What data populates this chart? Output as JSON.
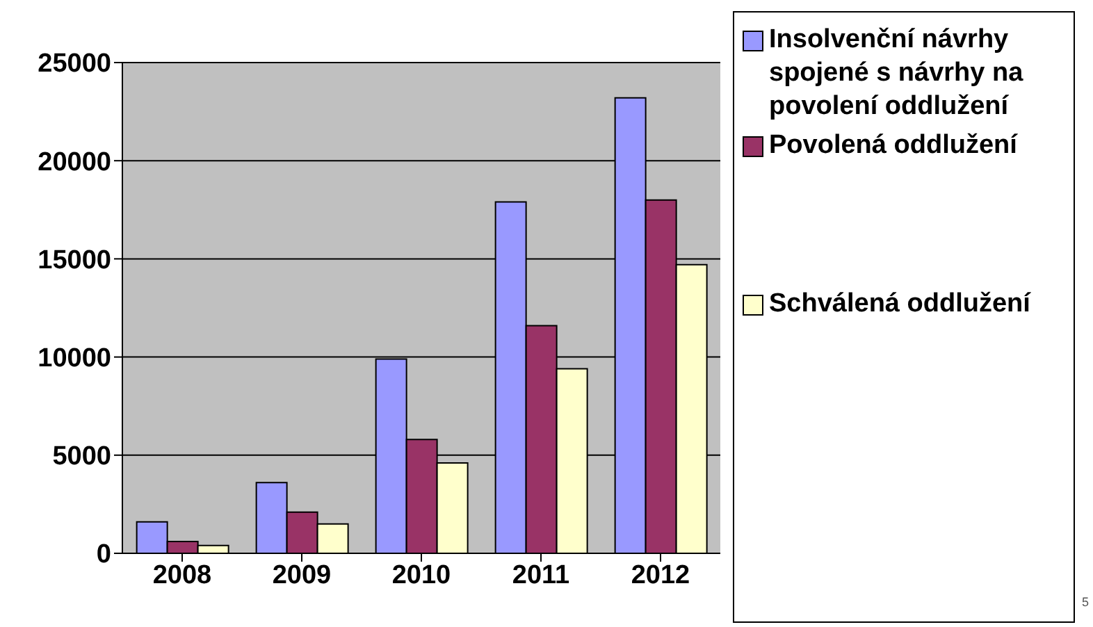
{
  "chart_data": {
    "type": "bar",
    "categories": [
      "2008",
      "2009",
      "2010",
      "2011",
      "2012"
    ],
    "series": [
      {
        "name": "Insolvenční návrhy spojené s návrhy na povolení oddlužení",
        "color": "#9999ff",
        "values": [
          1600,
          3600,
          9900,
          17900,
          23200
        ]
      },
      {
        "name": "Povolená oddlužení",
        "color": "#993366",
        "values": [
          600,
          2100,
          5800,
          11600,
          18000
        ]
      },
      {
        "name": "Schválená oddlužení",
        "color": "#ffffcc",
        "values": [
          400,
          1500,
          4600,
          9400,
          14700
        ]
      }
    ],
    "ylim": [
      0,
      25000
    ],
    "yticks": [
      0,
      5000,
      10000,
      15000,
      20000,
      25000
    ],
    "grid": "y",
    "legend": "right",
    "annotations": [
      "5"
    ]
  }
}
